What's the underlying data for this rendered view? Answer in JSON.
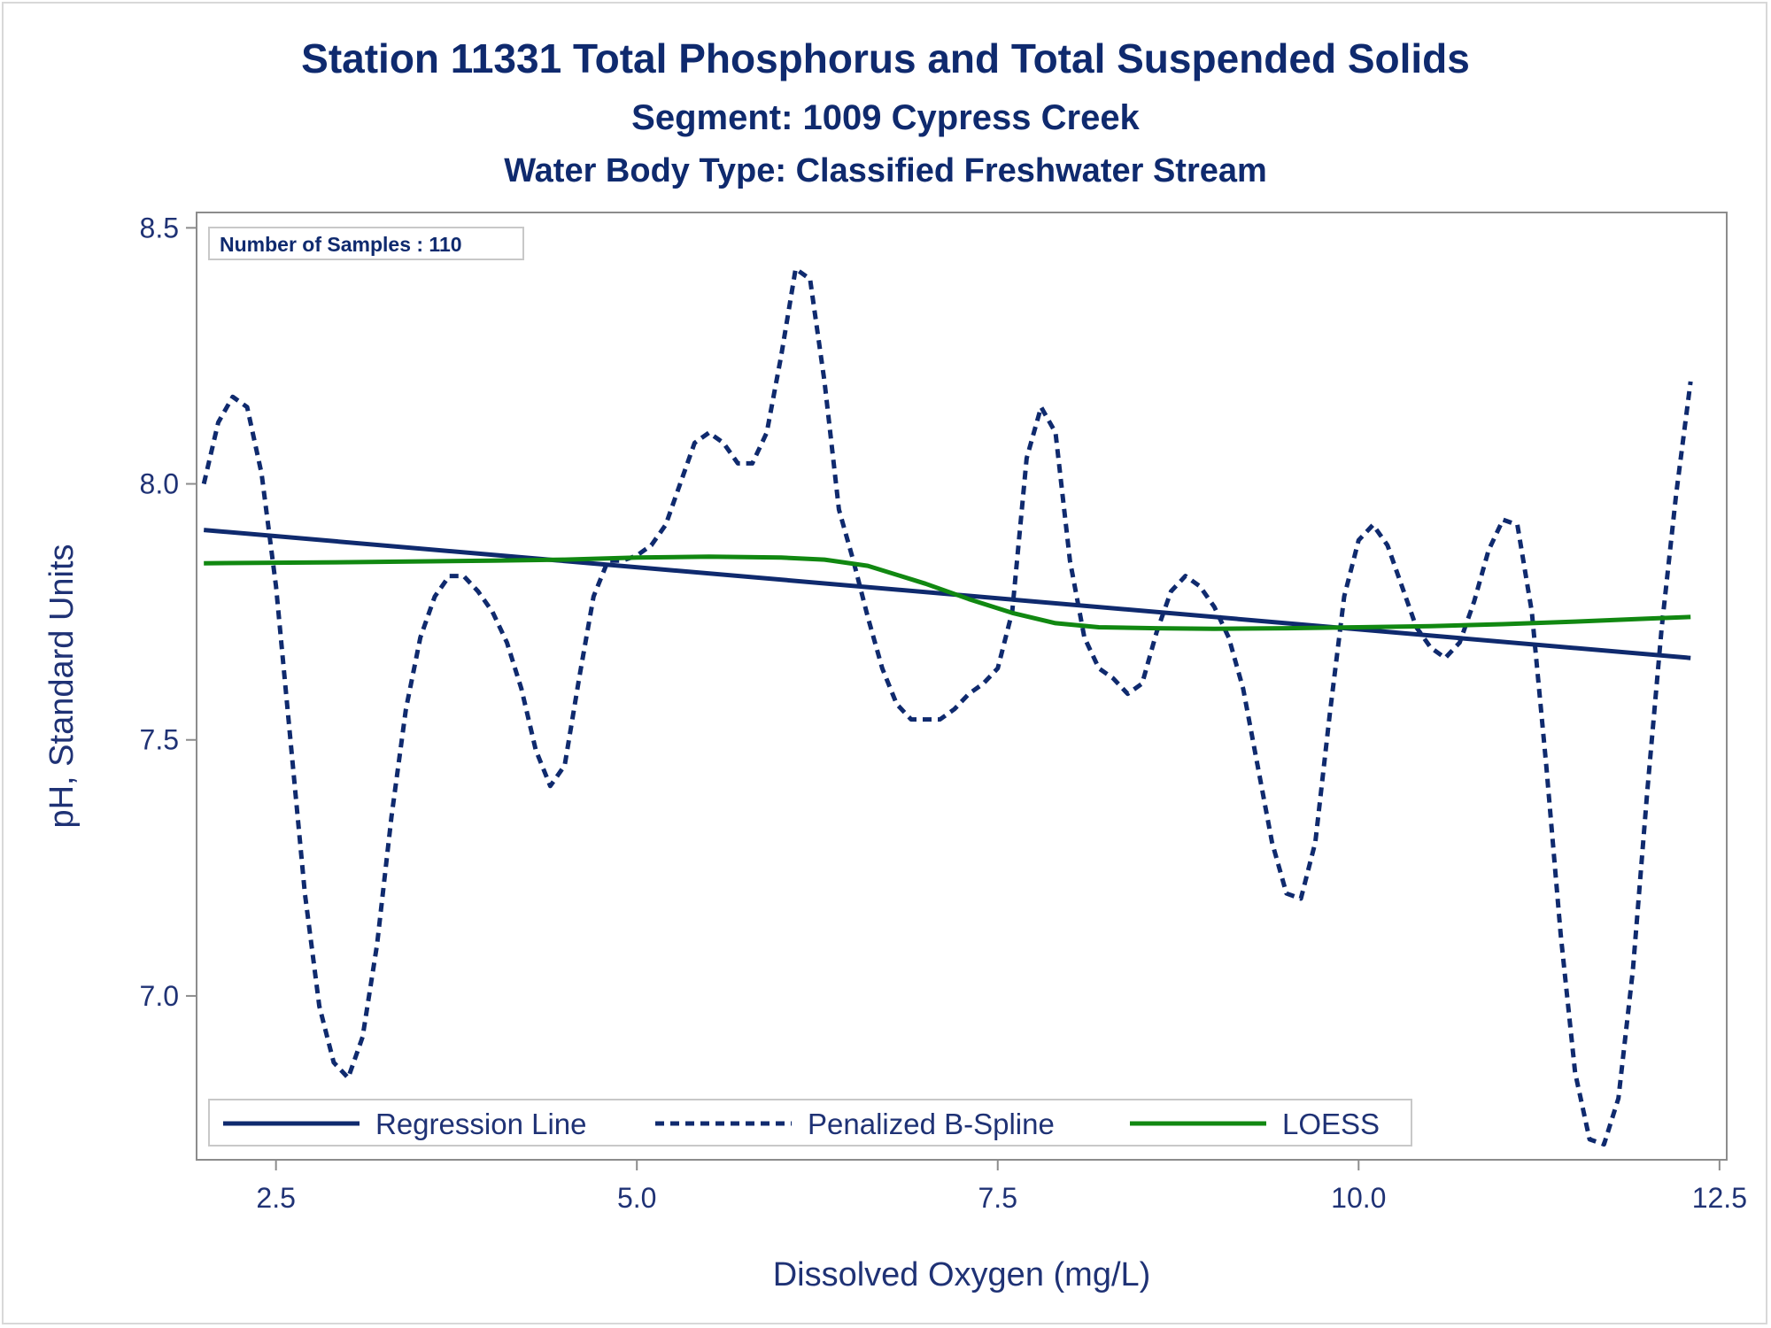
{
  "chart_data": {
    "type": "line",
    "title": "Station 11331  Total Phosphorus and Total Suspended Solids",
    "subtitle": "Segment: 1009  Cypress Creek",
    "subtitle2": "Water Body Type: Classified Freshwater Stream",
    "xlabel": "Dissolved Oxygen (mg/L)",
    "ylabel": "pH, Standard Units",
    "xlim": [
      1.95,
      12.55
    ],
    "ylim": [
      6.68,
      8.53
    ],
    "xticks": [
      "2.5",
      "5.0",
      "7.5",
      "10.0",
      "12.5"
    ],
    "xtick_values": [
      2.5,
      5.0,
      7.5,
      10.0,
      12.5
    ],
    "yticks": [
      "7.0",
      "7.5",
      "8.0",
      "8.5"
    ],
    "ytick_values": [
      7.0,
      7.5,
      8.0,
      8.5
    ],
    "inset_text": "Number of Samples : 110",
    "legend_position": "bottom-left inside",
    "series": [
      {
        "name": "Regression Line",
        "style": "solid",
        "color": "#0f2a6e",
        "x": [
          2.0,
          12.3
        ],
        "y": [
          7.91,
          7.66
        ]
      },
      {
        "name": "Penalized B-Spline",
        "style": "dashed",
        "color": "#0f2a6e",
        "x": [
          2.0,
          2.1,
          2.2,
          2.3,
          2.4,
          2.5,
          2.6,
          2.7,
          2.8,
          2.9,
          3.0,
          3.1,
          3.2,
          3.3,
          3.4,
          3.5,
          3.6,
          3.7,
          3.8,
          3.9,
          4.0,
          4.1,
          4.2,
          4.3,
          4.4,
          4.5,
          4.6,
          4.7,
          4.8,
          4.9,
          5.0,
          5.1,
          5.2,
          5.3,
          5.4,
          5.5,
          5.6,
          5.7,
          5.8,
          5.9,
          6.0,
          6.1,
          6.2,
          6.3,
          6.4,
          6.5,
          6.6,
          6.7,
          6.8,
          6.9,
          7.0,
          7.1,
          7.2,
          7.3,
          7.4,
          7.5,
          7.6,
          7.7,
          7.8,
          7.9,
          8.0,
          8.1,
          8.2,
          8.3,
          8.4,
          8.5,
          8.6,
          8.7,
          8.8,
          8.9,
          9.0,
          9.1,
          9.2,
          9.3,
          9.4,
          9.5,
          9.6,
          9.7,
          9.8,
          9.9,
          10.0,
          10.1,
          10.2,
          10.3,
          10.4,
          10.5,
          10.6,
          10.7,
          10.8,
          10.9,
          11.0,
          11.1,
          11.2,
          11.3,
          11.4,
          11.5,
          11.6,
          11.7,
          11.8,
          11.9,
          12.0,
          12.1,
          12.2,
          12.3
        ],
        "y": [
          8.0,
          8.12,
          8.17,
          8.15,
          8.02,
          7.8,
          7.5,
          7.2,
          6.98,
          6.87,
          6.84,
          6.92,
          7.1,
          7.35,
          7.56,
          7.7,
          7.78,
          7.82,
          7.82,
          7.79,
          7.75,
          7.69,
          7.6,
          7.48,
          7.41,
          7.45,
          7.62,
          7.78,
          7.85,
          7.85,
          7.86,
          7.88,
          7.92,
          8.0,
          8.08,
          8.1,
          8.08,
          8.04,
          8.04,
          8.1,
          8.25,
          8.42,
          8.4,
          8.2,
          7.95,
          7.85,
          7.74,
          7.64,
          7.57,
          7.54,
          7.54,
          7.54,
          7.56,
          7.59,
          7.61,
          7.64,
          7.75,
          8.05,
          8.15,
          8.1,
          7.85,
          7.7,
          7.64,
          7.62,
          7.59,
          7.61,
          7.71,
          7.79,
          7.82,
          7.8,
          7.76,
          7.7,
          7.6,
          7.45,
          7.3,
          7.2,
          7.19,
          7.3,
          7.55,
          7.78,
          7.89,
          7.92,
          7.88,
          7.8,
          7.72,
          7.68,
          7.66,
          7.69,
          7.77,
          7.87,
          7.93,
          7.92,
          7.75,
          7.45,
          7.12,
          6.85,
          6.72,
          6.71,
          6.8,
          7.05,
          7.4,
          7.72,
          7.98,
          8.2
        ]
      },
      {
        "name": "LOESS",
        "style": "solid",
        "color": "#118811",
        "x": [
          2.0,
          3.0,
          4.0,
          4.5,
          5.0,
          5.5,
          6.0,
          6.3,
          6.6,
          7.0,
          7.3,
          7.6,
          7.9,
          8.2,
          8.6,
          9.0,
          9.5,
          10.0,
          10.5,
          11.0,
          11.5,
          12.0,
          12.3
        ],
        "y": [
          7.845,
          7.847,
          7.85,
          7.852,
          7.856,
          7.858,
          7.856,
          7.852,
          7.84,
          7.805,
          7.775,
          7.748,
          7.728,
          7.72,
          7.718,
          7.717,
          7.718,
          7.72,
          7.722,
          7.726,
          7.731,
          7.737,
          7.74
        ]
      }
    ]
  },
  "colors": {
    "text": "#0f2a6e",
    "axis": "#8c8c8c",
    "loess": "#118811"
  }
}
